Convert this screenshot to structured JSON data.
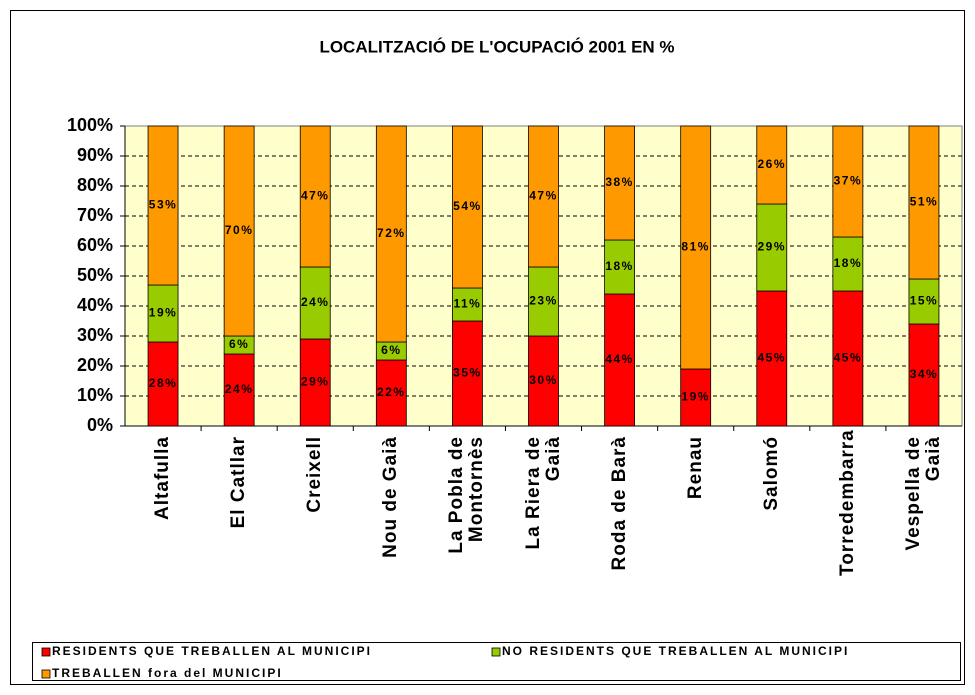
{
  "chart_data": {
    "type": "stacked_bar_100",
    "title": "LOCALITZACIÓ DE L'OCUPACIÓ 2001 EN %",
    "categories": [
      "Altafulla",
      "El Catllar",
      "Creixell",
      "Nou de Gaià",
      "La Pobla de Montornès",
      "La Riera de Gaià",
      "Roda de Barà",
      "Renau",
      "Salomó",
      "Torredembarra",
      "Vespella de Gaià"
    ],
    "series": [
      {
        "name": "RESIDENTS QUE TREBALLEN AL MUNICIPI",
        "color": "#ff0000",
        "values": [
          28,
          24,
          29,
          22,
          35,
          30,
          44,
          19,
          45,
          45,
          34
        ],
        "value_labels": [
          "28%",
          "24%",
          "29%",
          "22%",
          "35%",
          "30%",
          "44%",
          "19%",
          "45%",
          "45%",
          "34%"
        ]
      },
      {
        "name": "NO RESIDENTS QUE TREBALLEN AL MUNICIPI",
        "color": "#99cc00",
        "values": [
          19,
          6,
          24,
          6,
          11,
          23,
          18,
          0,
          29,
          18,
          15
        ],
        "value_labels": [
          "19%",
          "6%",
          "24%",
          "6%",
          "11%",
          "23%",
          "18%",
          null,
          "29%",
          "18%",
          "15%"
        ]
      },
      {
        "name": "TREBALLEN fora del MUNICIPI",
        "color": "#ff9900",
        "values": [
          53,
          70,
          47,
          72,
          54,
          47,
          38,
          81,
          26,
          37,
          51
        ],
        "value_labels": [
          "53%",
          "70%",
          "47%",
          "72%",
          "54%",
          "47%",
          "38%",
          "81%",
          "26%",
          "37%",
          "51%"
        ]
      }
    ],
    "ylim": [
      0,
      100
    ],
    "yticks": [
      {
        "value": 0,
        "label": "0%"
      },
      {
        "value": 10,
        "label": "10%"
      },
      {
        "value": 20,
        "label": "20%"
      },
      {
        "value": 30,
        "label": "30%"
      },
      {
        "value": 40,
        "label": "40%"
      },
      {
        "value": 50,
        "label": "50%"
      },
      {
        "value": 60,
        "label": "60%"
      },
      {
        "value": 70,
        "label": "70%"
      },
      {
        "value": 80,
        "label": "80%"
      },
      {
        "value": 90,
        "label": "90%"
      },
      {
        "value": 100,
        "label": "100%"
      }
    ],
    "grid": true,
    "legend": "bottom"
  }
}
